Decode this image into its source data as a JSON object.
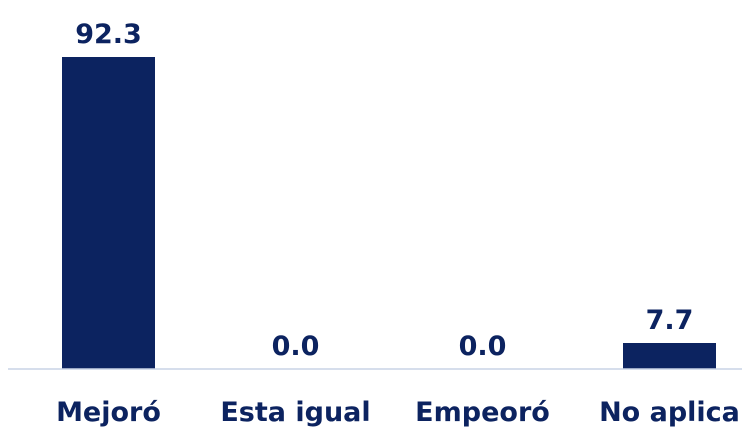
{
  "chart_data": {
    "type": "bar",
    "title": "",
    "xlabel": "",
    "ylabel": "",
    "categories": [
      "Mejoró",
      "Esta igual",
      "Empeoró",
      "No aplica"
    ],
    "values": [
      92.3,
      0.0,
      0.0,
      7.7
    ],
    "value_labels": [
      "92.3",
      "0.0",
      "0.0",
      "7.7"
    ],
    "ylim": [
      0,
      100
    ],
    "grid": false,
    "legend": "none",
    "colors": {
      "bar": "#0c2360",
      "label": "#0c2360",
      "axis": "#c9d3e6"
    }
  }
}
